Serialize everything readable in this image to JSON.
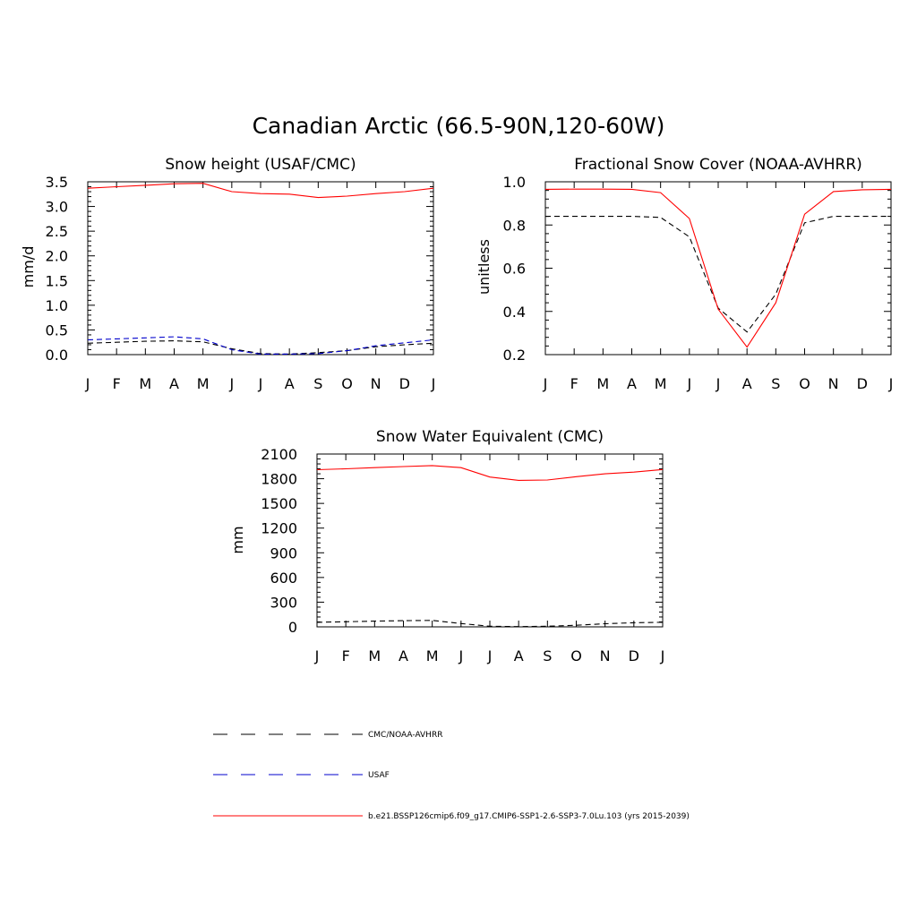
{
  "figure": {
    "title": "Canadian Arctic (66.5-90N,120-60W)"
  },
  "chart_data": [
    {
      "type": "line",
      "title": "Snow height (USAF/CMC)",
      "xlabel": "",
      "ylabel": "mm/d",
      "ylim": [
        0,
        3.5
      ],
      "yticks": [
        0.0,
        0.5,
        1.0,
        1.5,
        2.0,
        2.5,
        3.0,
        3.5
      ],
      "ytick_labels": [
        "0.0",
        "0.5",
        "1.0",
        "1.5",
        "2.0",
        "2.5",
        "3.0",
        "3.5"
      ],
      "x": [
        "J",
        "F",
        "M",
        "A",
        "M",
        "J",
        "J",
        "A",
        "S",
        "O",
        "N",
        "D",
        "J"
      ],
      "series": [
        {
          "key": "cmc",
          "color": "#000000",
          "dash": "dash",
          "values": [
            0.23,
            0.25,
            0.27,
            0.28,
            0.26,
            0.12,
            0.02,
            0.01,
            0.04,
            0.08,
            0.16,
            0.2,
            0.23
          ]
        },
        {
          "key": "usaf",
          "color": "#0000cc",
          "dash": "dash",
          "values": [
            0.3,
            0.32,
            0.34,
            0.36,
            0.32,
            0.1,
            0.01,
            0.01,
            0.02,
            0.08,
            0.18,
            0.24,
            0.3
          ]
        },
        {
          "key": "model",
          "color": "#ff0000",
          "dash": "solid",
          "values": [
            3.37,
            3.4,
            3.43,
            3.46,
            3.47,
            3.3,
            3.26,
            3.25,
            3.18,
            3.21,
            3.26,
            3.3,
            3.37
          ]
        }
      ]
    },
    {
      "type": "line",
      "title": "Fractional Snow Cover (NOAA-AVHRR)",
      "xlabel": "",
      "ylabel": "unitless",
      "ylim": [
        0.2,
        1.0
      ],
      "yticks": [
        0.2,
        0.4,
        0.6,
        0.8,
        1.0
      ],
      "ytick_labels": [
        "0.2",
        "0.4",
        "0.6",
        "0.8",
        "1.0"
      ],
      "x": [
        "J",
        "F",
        "M",
        "A",
        "M",
        "J",
        "J",
        "A",
        "S",
        "O",
        "N",
        "D",
        "J"
      ],
      "series": [
        {
          "key": "cmc",
          "color": "#000000",
          "dash": "dash",
          "values": [
            0.84,
            0.84,
            0.84,
            0.84,
            0.835,
            0.745,
            0.415,
            0.305,
            0.48,
            0.81,
            0.84,
            0.84,
            0.84
          ]
        },
        {
          "key": "model",
          "color": "#ff0000",
          "dash": "solid",
          "values": [
            0.965,
            0.966,
            0.966,
            0.965,
            0.95,
            0.83,
            0.41,
            0.235,
            0.44,
            0.85,
            0.955,
            0.963,
            0.965
          ]
        }
      ]
    },
    {
      "type": "line",
      "title": "Snow Water Equivalent (CMC)",
      "xlabel": "",
      "ylabel": "mm",
      "ylim": [
        0,
        2100
      ],
      "yticks": [
        0,
        300,
        600,
        900,
        1200,
        1500,
        1800,
        2100
      ],
      "ytick_labels": [
        "0",
        "300",
        "600",
        "900",
        "1200",
        "1500",
        "1800",
        "2100"
      ],
      "x": [
        "J",
        "F",
        "M",
        "A",
        "M",
        "J",
        "J",
        "A",
        "S",
        "O",
        "N",
        "D",
        "J"
      ],
      "series": [
        {
          "key": "cmc",
          "color": "#000000",
          "dash": "dash",
          "values": [
            55,
            62,
            70,
            75,
            78,
            40,
            8,
            3,
            8,
            20,
            38,
            50,
            55
          ]
        },
        {
          "key": "model",
          "color": "#ff0000",
          "dash": "solid",
          "values": [
            1910,
            1920,
            1935,
            1948,
            1960,
            1935,
            1820,
            1780,
            1785,
            1825,
            1860,
            1880,
            1912
          ]
        }
      ]
    }
  ],
  "legend": [
    {
      "key": "cmc",
      "label": "CMC/NOAA-AVHRR",
      "color": "#000000",
      "dash": "dash"
    },
    {
      "key": "usaf",
      "label": "USAF",
      "color": "#0000cc",
      "dash": "dash"
    },
    {
      "key": "model",
      "label": "b.e21.BSSP126cmip6.f09_g17.CMIP6-SSP1-2.6-SSP3-7.0Lu.103 (yrs 2015-2039)",
      "color": "#ff0000",
      "dash": "solid"
    }
  ]
}
